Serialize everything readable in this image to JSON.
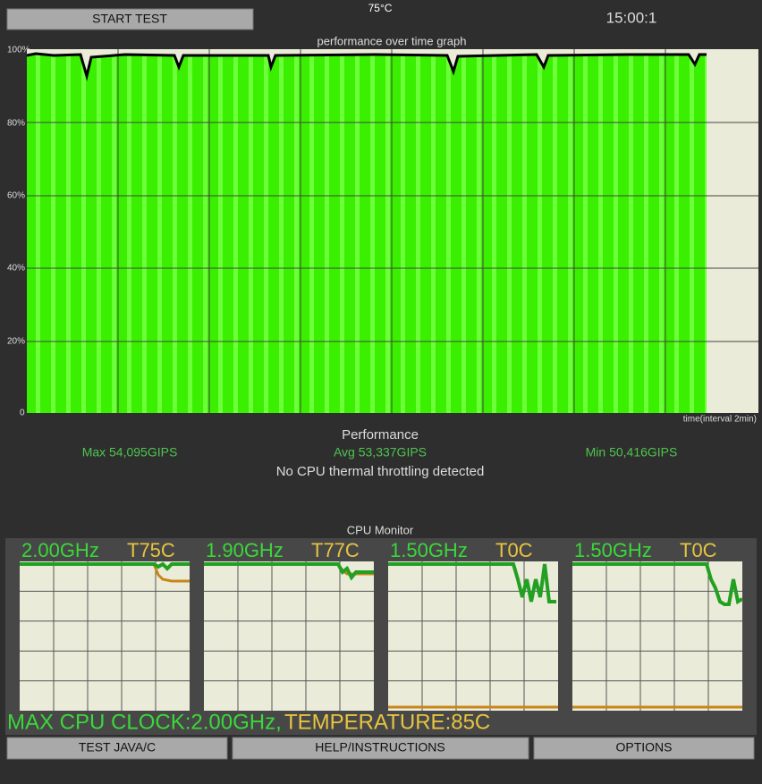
{
  "header": {
    "button": "START TEST",
    "temperature": "75°C",
    "timer": "15:00:1"
  },
  "graph": {
    "title": "performance over time graph",
    "y_labels": [
      "100%",
      "80%",
      "60%",
      "40%",
      "20%",
      "0"
    ],
    "x_label": "time(interval 2min)"
  },
  "performance": {
    "title": "Performance",
    "max": "Max 54,095GIPS",
    "avg": "Avg 53,337GIPS",
    "min": "Min 50,416GIPS",
    "status": "No CPU thermal throttling detected"
  },
  "cpu_monitor": {
    "title": "CPU Monitor",
    "cores": [
      {
        "clock": "2.00GHz",
        "temp": "T75C"
      },
      {
        "clock": "1.90GHz",
        "temp": "T77C"
      },
      {
        "clock": "1.50GHz",
        "temp": "T0C"
      },
      {
        "clock": "1.50GHz",
        "temp": "T0C"
      }
    ],
    "summary_clock": "MAX CPU CLOCK:2.00GHz,",
    "summary_temp": "TEMPERATURE:85C"
  },
  "buttons": [
    "TEST JAVA/C",
    "HELP/INSTRUCTIONS",
    "OPTIONS"
  ]
}
